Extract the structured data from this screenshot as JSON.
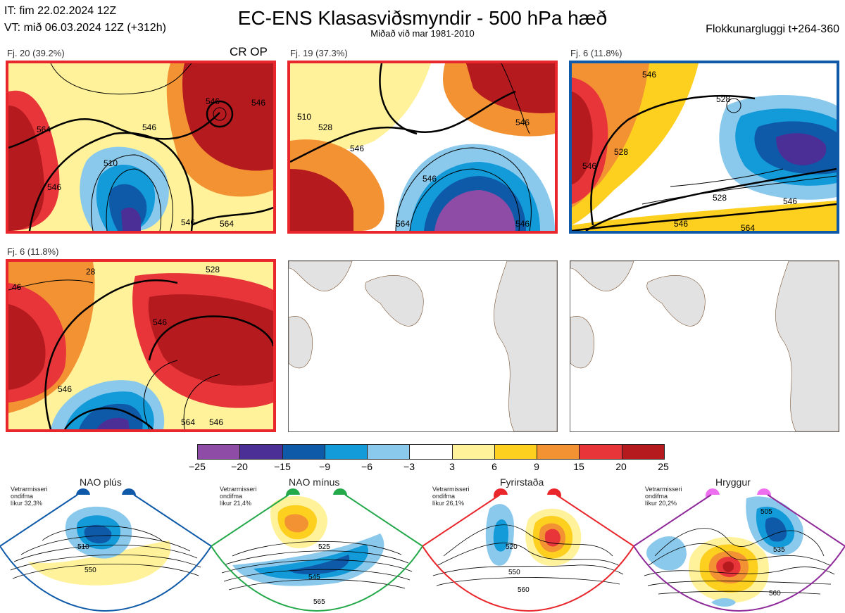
{
  "header": {
    "it": "IT: fim 22.02.2024 12Z",
    "vt": "VT: mið 06.03.2024 12Z  (+312h)",
    "title": "EC-ENS Klasasviðsmyndir - 500 hPa hæð",
    "subtitle": "Miðað við mar 1981-2010",
    "window": "Flokkunargluggi t+264-360"
  },
  "panels": [
    {
      "label": "Fj. 20 (39.2%)",
      "extra": "CR OP",
      "frame_color": "#e8262b",
      "contours": [
        "546",
        "546",
        "510",
        "546",
        "564",
        "546",
        "564",
        "546"
      ]
    },
    {
      "label": "Fj. 19 (37.3%)",
      "frame_color": "#e8262b",
      "contours": [
        "510",
        "528",
        "546",
        "546",
        "546",
        "564",
        "546"
      ]
    },
    {
      "label": "Fj. 6 (11.8%)",
      "frame_color": "#0f5aa8",
      "contours": [
        "546",
        "528",
        "528",
        "546",
        "528",
        "546",
        "546",
        "564"
      ]
    },
    {
      "label": "Fj. 6 (11.8%)",
      "frame_color": "#e8262b",
      "contours": [
        "46",
        "28",
        "528",
        "546",
        "546",
        "564",
        "546"
      ]
    }
  ],
  "colorbar": {
    "ticks": [
      "−25",
      "−20",
      "−15",
      "−9",
      "−6",
      "−3",
      "3",
      "6",
      "9",
      "15",
      "20",
      "25"
    ],
    "colors": [
      "#8e4ca6",
      "#4b2e96",
      "#0f5aa8",
      "#139ad9",
      "#8bc9ec",
      "#ffffff",
      "#fff29a",
      "#fdd01f",
      "#f39233",
      "#e8353a",
      "#b51a1f"
    ]
  },
  "regimes": [
    {
      "name": "NAO plús",
      "meta": [
        "Vetrarmisseri",
        "ondifma",
        "líkur 32,3%"
      ],
      "color": "#0f5aa8",
      "labels": [
        "510",
        "550"
      ]
    },
    {
      "name": "NAO mínus",
      "meta": [
        "Vetrarmisseri",
        "ondifma",
        "líkur 21,4%"
      ],
      "color": "#23a84a",
      "labels": [
        "525",
        "545",
        "565"
      ]
    },
    {
      "name": "Fyrirstaða",
      "meta": [
        "Vetrarmisseri",
        "ondifma",
        "líkur 26,1%"
      ],
      "color": "#e8262b",
      "labels": [
        "520",
        "550",
        "560"
      ]
    },
    {
      "name": "Hryggur",
      "meta": [
        "Vetrarmisseri",
        "ondifma",
        "líkur 20,2%"
      ],
      "color": "#ee6ef0",
      "labels": [
        "505",
        "535",
        "560"
      ]
    }
  ]
}
